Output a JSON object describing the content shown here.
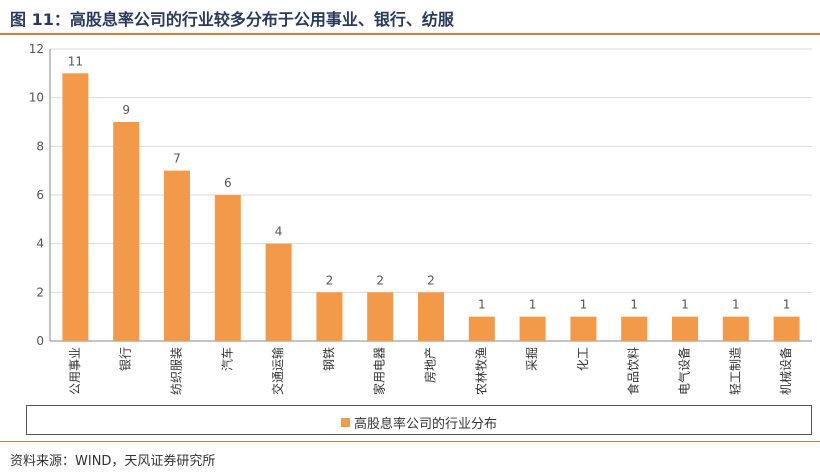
{
  "header": {
    "title": "图 11：高股息率公司的行业较多分布于公用事业、银行、纺服"
  },
  "footer": {
    "source": "资料来源：WIND，天风证券研究所"
  },
  "colors": {
    "bar": "#f2994a",
    "rule": "#c4843b",
    "grid": "#d9d9d9",
    "axis": "#888888"
  },
  "chart_data": {
    "type": "bar",
    "categories": [
      "公用事业",
      "银行",
      "纺织服装",
      "汽车",
      "交通运输",
      "钢铁",
      "家用电器",
      "房地产",
      "农林牧渔",
      "采掘",
      "化工",
      "食品饮料",
      "电气设备",
      "轻工制造",
      "机械设备"
    ],
    "series": [
      {
        "name": "高股息率公司的行业分布",
        "values": [
          11,
          9,
          7,
          6,
          4,
          2,
          2,
          2,
          1,
          1,
          1,
          1,
          1,
          1,
          1
        ]
      }
    ],
    "y_ticks": [
      "0",
      "2",
      "4",
      "6",
      "8",
      "10",
      "12"
    ],
    "ylim": [
      0,
      12
    ],
    "grid": true,
    "legend_position": "bottom",
    "data_labels": true
  }
}
